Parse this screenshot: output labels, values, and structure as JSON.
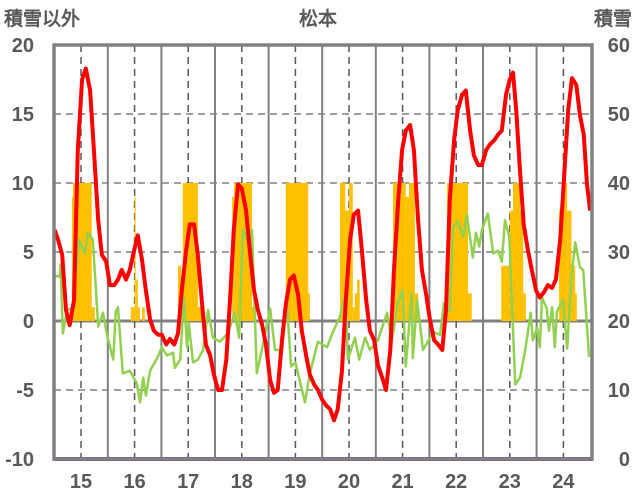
{
  "chart_data": {
    "type": "line",
    "title": "松本",
    "ylabel_left": "積雪以外",
    "ylabel_right": "積雪",
    "x_tick_labels": [
      "15",
      "16",
      "17",
      "18",
      "19",
      "20",
      "21",
      "22",
      "23",
      "24"
    ],
    "x_ticks": [
      15,
      16,
      17,
      18,
      19,
      20,
      21,
      22,
      23,
      24
    ],
    "xlim": [
      14.5,
      24.53
    ],
    "ylim_left": [
      -10,
      20
    ],
    "yticks_left": [
      "-10",
      "-5",
      "0",
      "5",
      "10",
      "15",
      "20"
    ],
    "ylim_right": [
      0,
      60
    ],
    "yticks_right": [
      "0",
      "10",
      "20",
      "30",
      "40",
      "50",
      "60"
    ],
    "grid": true,
    "colors": {
      "red_series": "#ff0000",
      "green_series": "#92d050",
      "snow_bars": "#ffc000",
      "baseline_series": "#7030a0",
      "frame": "#808080"
    },
    "snow_bar_baseline_right": 20,
    "snow_bars": [
      [
        14.83,
        14.85,
        38
      ],
      [
        14.85,
        15.2,
        40
      ],
      [
        15.2,
        15.26,
        22
      ],
      [
        15.93,
        16.0,
        22
      ],
      [
        16.0,
        16.02,
        38
      ],
      [
        16.02,
        16.06,
        26
      ],
      [
        16.06,
        16.1,
        22
      ],
      [
        16.14,
        16.19,
        22
      ],
      [
        16.81,
        16.87,
        28
      ],
      [
        16.87,
        16.9,
        22
      ],
      [
        16.9,
        17.18,
        40
      ],
      [
        17.18,
        17.28,
        22
      ],
      [
        17.82,
        17.86,
        38
      ],
      [
        17.86,
        18.19,
        40
      ],
      [
        18.19,
        18.23,
        22
      ],
      [
        18.82,
        19.24,
        40
      ],
      [
        19.24,
        19.27,
        24
      ],
      [
        19.83,
        19.93,
        40
      ],
      [
        19.93,
        20.0,
        36
      ],
      [
        20.0,
        20.07,
        40
      ],
      [
        20.07,
        20.11,
        22
      ],
      [
        20.11,
        20.15,
        24
      ],
      [
        20.15,
        20.2,
        26
      ],
      [
        20.82,
        20.91,
        40
      ],
      [
        20.91,
        20.97,
        38
      ],
      [
        20.97,
        21.06,
        40
      ],
      [
        21.06,
        21.12,
        38
      ],
      [
        21.12,
        21.23,
        40
      ],
      [
        21.23,
        21.29,
        24
      ],
      [
        21.83,
        22.22,
        40
      ],
      [
        22.22,
        22.29,
        24
      ],
      [
        22.84,
        23.0,
        28
      ],
      [
        23.0,
        23.06,
        36
      ],
      [
        23.06,
        23.19,
        40
      ],
      [
        23.19,
        23.25,
        36
      ],
      [
        23.25,
        23.3,
        24
      ],
      [
        23.92,
        24.0,
        36
      ],
      [
        24.0,
        24.07,
        40
      ],
      [
        24.07,
        24.15,
        36
      ],
      [
        24.15,
        24.22,
        28
      ],
      [
        24.22,
        24.25,
        24
      ]
    ],
    "series": [
      {
        "name": "red",
        "axis": "left",
        "points": [
          [
            14.51,
            6.6
          ],
          [
            14.57,
            5.9
          ],
          [
            14.65,
            4.8
          ],
          [
            14.72,
            0.8
          ],
          [
            14.79,
            -0.3
          ],
          [
            14.87,
            1.5
          ],
          [
            14.94,
            12.4
          ],
          [
            15.02,
            17.5
          ],
          [
            15.09,
            18.3
          ],
          [
            15.17,
            16.7
          ],
          [
            15.24,
            12.4
          ],
          [
            15.32,
            7.3
          ],
          [
            15.39,
            4.8
          ],
          [
            15.47,
            4.3
          ],
          [
            15.54,
            2.6
          ],
          [
            15.62,
            2.6
          ],
          [
            15.69,
            3.0
          ],
          [
            15.76,
            3.7
          ],
          [
            15.84,
            3.0
          ],
          [
            15.91,
            3.7
          ],
          [
            15.99,
            5.1
          ],
          [
            16.06,
            6.2
          ],
          [
            16.14,
            4.4
          ],
          [
            16.21,
            2.2
          ],
          [
            16.29,
            0.1
          ],
          [
            16.36,
            -0.7
          ],
          [
            16.44,
            -1.0
          ],
          [
            16.51,
            -1.0
          ],
          [
            16.59,
            -1.7
          ],
          [
            16.66,
            -1.3
          ],
          [
            16.74,
            -1.7
          ],
          [
            16.81,
            -0.9
          ],
          [
            16.88,
            2.2
          ],
          [
            16.96,
            5.1
          ],
          [
            17.03,
            7.0
          ],
          [
            17.11,
            7.0
          ],
          [
            17.18,
            4.8
          ],
          [
            17.26,
            1.2
          ],
          [
            17.33,
            -1.7
          ],
          [
            17.41,
            -2.5
          ],
          [
            17.48,
            -3.9
          ],
          [
            17.56,
            -5.0
          ],
          [
            17.63,
            -5.0
          ],
          [
            17.71,
            -2.8
          ],
          [
            17.78,
            1.5
          ],
          [
            17.85,
            6.6
          ],
          [
            17.93,
            9.9
          ],
          [
            18.0,
            9.6
          ],
          [
            18.08,
            8.0
          ],
          [
            18.15,
            5.1
          ],
          [
            18.23,
            2.2
          ],
          [
            18.3,
            0.8
          ],
          [
            18.38,
            -0.3
          ],
          [
            18.45,
            -1.7
          ],
          [
            18.53,
            -4.3
          ],
          [
            18.6,
            -5.2
          ],
          [
            18.67,
            -5.0
          ],
          [
            18.75,
            -1.4
          ],
          [
            18.82,
            1.2
          ],
          [
            18.9,
            3.0
          ],
          [
            18.97,
            3.3
          ],
          [
            19.05,
            1.9
          ],
          [
            19.12,
            -0.7
          ],
          [
            19.2,
            -2.5
          ],
          [
            19.27,
            -3.9
          ],
          [
            19.35,
            -4.6
          ],
          [
            19.42,
            -5.0
          ],
          [
            19.5,
            -5.7
          ],
          [
            19.57,
            -6.1
          ],
          [
            19.65,
            -6.4
          ],
          [
            19.72,
            -7.2
          ],
          [
            19.79,
            -6.4
          ],
          [
            19.87,
            -3.6
          ],
          [
            19.94,
            1.5
          ],
          [
            20.02,
            5.9
          ],
          [
            20.09,
            7.7
          ],
          [
            20.17,
            8.0
          ],
          [
            20.24,
            5.1
          ],
          [
            20.32,
            1.5
          ],
          [
            20.39,
            -0.7
          ],
          [
            20.47,
            -1.4
          ],
          [
            20.54,
            -3.2
          ],
          [
            20.62,
            -4.1
          ],
          [
            20.69,
            -5.0
          ],
          [
            20.77,
            -2.1
          ],
          [
            20.84,
            3.7
          ],
          [
            20.92,
            8.8
          ],
          [
            20.99,
            12.4
          ],
          [
            21.06,
            13.8
          ],
          [
            21.14,
            14.2
          ],
          [
            21.21,
            12.4
          ],
          [
            21.29,
            7.3
          ],
          [
            21.36,
            3.7
          ],
          [
            21.44,
            1.9
          ],
          [
            21.51,
            0.1
          ],
          [
            21.59,
            -1.4
          ],
          [
            21.66,
            -1.7
          ],
          [
            21.74,
            -2.1
          ],
          [
            21.81,
            0.8
          ],
          [
            21.88,
            8.8
          ],
          [
            21.96,
            13.1
          ],
          [
            22.03,
            15.3
          ],
          [
            22.11,
            16.4
          ],
          [
            22.18,
            16.7
          ],
          [
            22.26,
            13.8
          ],
          [
            22.33,
            12.0
          ],
          [
            22.41,
            11.3
          ],
          [
            22.48,
            11.3
          ],
          [
            22.56,
            12.4
          ],
          [
            22.63,
            12.8
          ],
          [
            22.71,
            13.1
          ],
          [
            22.78,
            13.5
          ],
          [
            22.85,
            13.8
          ],
          [
            22.93,
            16.4
          ],
          [
            23.0,
            17.5
          ],
          [
            23.06,
            18.0
          ],
          [
            23.12,
            15.3
          ],
          [
            23.19,
            10.9
          ],
          [
            23.26,
            7.0
          ],
          [
            23.34,
            5.1
          ],
          [
            23.41,
            3.7
          ],
          [
            23.49,
            2.2
          ],
          [
            23.56,
            1.7
          ],
          [
            23.64,
            2.1
          ],
          [
            23.71,
            2.6
          ],
          [
            23.79,
            2.4
          ],
          [
            23.86,
            3.0
          ],
          [
            23.94,
            5.9
          ],
          [
            24.01,
            10.2
          ],
          [
            24.09,
            15.3
          ],
          [
            24.16,
            17.6
          ],
          [
            24.24,
            17.1
          ],
          [
            24.31,
            14.9
          ],
          [
            24.38,
            13.5
          ],
          [
            24.44,
            9.9
          ],
          [
            24.5,
            8.0
          ]
        ]
      },
      {
        "name": "green",
        "axis": "left",
        "points": [
          [
            14.5,
            3.3
          ],
          [
            14.6,
            3.2
          ],
          [
            14.62,
            4.1
          ],
          [
            14.66,
            -0.9
          ],
          [
            14.74,
            0.8
          ],
          [
            14.85,
            1.0
          ],
          [
            14.96,
            5.9
          ],
          [
            15.07,
            4.9
          ],
          [
            15.13,
            6.4
          ],
          [
            15.22,
            5.9
          ],
          [
            15.32,
            -0.4
          ],
          [
            15.41,
            0.6
          ],
          [
            15.48,
            -0.9
          ],
          [
            15.6,
            -2.8
          ],
          [
            15.65,
            0.7
          ],
          [
            15.69,
            1.0
          ],
          [
            15.78,
            -3.8
          ],
          [
            15.91,
            -3.6
          ],
          [
            16.04,
            -4.5
          ],
          [
            16.1,
            -5.9
          ],
          [
            16.16,
            -4.1
          ],
          [
            16.21,
            -5.4
          ],
          [
            16.29,
            -3.6
          ],
          [
            16.42,
            -2.7
          ],
          [
            16.51,
            -1.9
          ],
          [
            16.6,
            -2.5
          ],
          [
            16.72,
            -2.3
          ],
          [
            16.75,
            -3.4
          ],
          [
            16.85,
            -2.8
          ],
          [
            16.92,
            1.7
          ],
          [
            16.98,
            -1.9
          ],
          [
            17.01,
            -0.1
          ],
          [
            17.09,
            -3.0
          ],
          [
            17.18,
            -2.8
          ],
          [
            17.28,
            -2.1
          ],
          [
            17.37,
            0.8
          ],
          [
            17.46,
            -1.2
          ],
          [
            17.59,
            -1.5
          ],
          [
            17.74,
            -0.9
          ],
          [
            17.87,
            0.6
          ],
          [
            17.95,
            -1.2
          ],
          [
            18.02,
            6.6
          ],
          [
            18.1,
            5.9
          ],
          [
            18.19,
            6.6
          ],
          [
            18.28,
            -3.8
          ],
          [
            18.4,
            -1.6
          ],
          [
            18.53,
            0.9
          ],
          [
            18.62,
            -2.1
          ],
          [
            18.75,
            -2.1
          ],
          [
            18.84,
            1.4
          ],
          [
            18.92,
            -3.3
          ],
          [
            19.0,
            -3.0
          ],
          [
            19.18,
            -5.9
          ],
          [
            19.27,
            -3.8
          ],
          [
            19.42,
            -1.5
          ],
          [
            19.59,
            -1.9
          ],
          [
            19.7,
            -0.8
          ],
          [
            19.83,
            0.3
          ],
          [
            19.93,
            2.0
          ],
          [
            19.98,
            -2.8
          ],
          [
            20.11,
            -1.2
          ],
          [
            20.19,
            -2.8
          ],
          [
            20.3,
            -1.2
          ],
          [
            20.39,
            -2.1
          ],
          [
            20.54,
            -1.4
          ],
          [
            20.71,
            0.6
          ],
          [
            20.8,
            -1.5
          ],
          [
            20.91,
            1.3
          ],
          [
            21.0,
            2.2
          ],
          [
            21.06,
            -3.3
          ],
          [
            21.17,
            2.0
          ],
          [
            21.19,
            -2.7
          ],
          [
            21.27,
            1.5
          ],
          [
            21.38,
            -2.1
          ],
          [
            21.57,
            -0.8
          ],
          [
            21.7,
            -1.0
          ],
          [
            21.77,
            1.3
          ],
          [
            21.88,
            0.7
          ],
          [
            21.94,
            6.8
          ],
          [
            22.03,
            7.2
          ],
          [
            22.13,
            6.1
          ],
          [
            22.2,
            7.7
          ],
          [
            22.31,
            4.6
          ],
          [
            22.37,
            6.4
          ],
          [
            22.43,
            5.4
          ],
          [
            22.48,
            6.6
          ],
          [
            22.59,
            7.8
          ],
          [
            22.69,
            4.9
          ],
          [
            22.78,
            5.1
          ],
          [
            22.85,
            4.3
          ],
          [
            22.91,
            7.3
          ],
          [
            22.99,
            6.1
          ],
          [
            23.1,
            -4.6
          ],
          [
            23.19,
            -4.1
          ],
          [
            23.28,
            -2.3
          ],
          [
            23.39,
            0.6
          ],
          [
            23.43,
            -1.4
          ],
          [
            23.51,
            -0.5
          ],
          [
            23.56,
            -1.9
          ],
          [
            23.6,
            1.7
          ],
          [
            23.69,
            0.9
          ],
          [
            23.73,
            -0.7
          ],
          [
            23.79,
            1.0
          ],
          [
            23.84,
            -1.9
          ],
          [
            23.88,
            0.7
          ],
          [
            23.99,
            1.5
          ],
          [
            24.07,
            -2.0
          ],
          [
            24.14,
            2.8
          ],
          [
            24.22,
            5.7
          ],
          [
            24.31,
            3.9
          ],
          [
            24.37,
            3.7
          ],
          [
            24.48,
            -2.6
          ]
        ]
      },
      {
        "name": "purple",
        "axis": "left",
        "points": [
          [
            14.5,
            -10
          ],
          [
            24.53,
            -10
          ]
        ]
      }
    ]
  }
}
